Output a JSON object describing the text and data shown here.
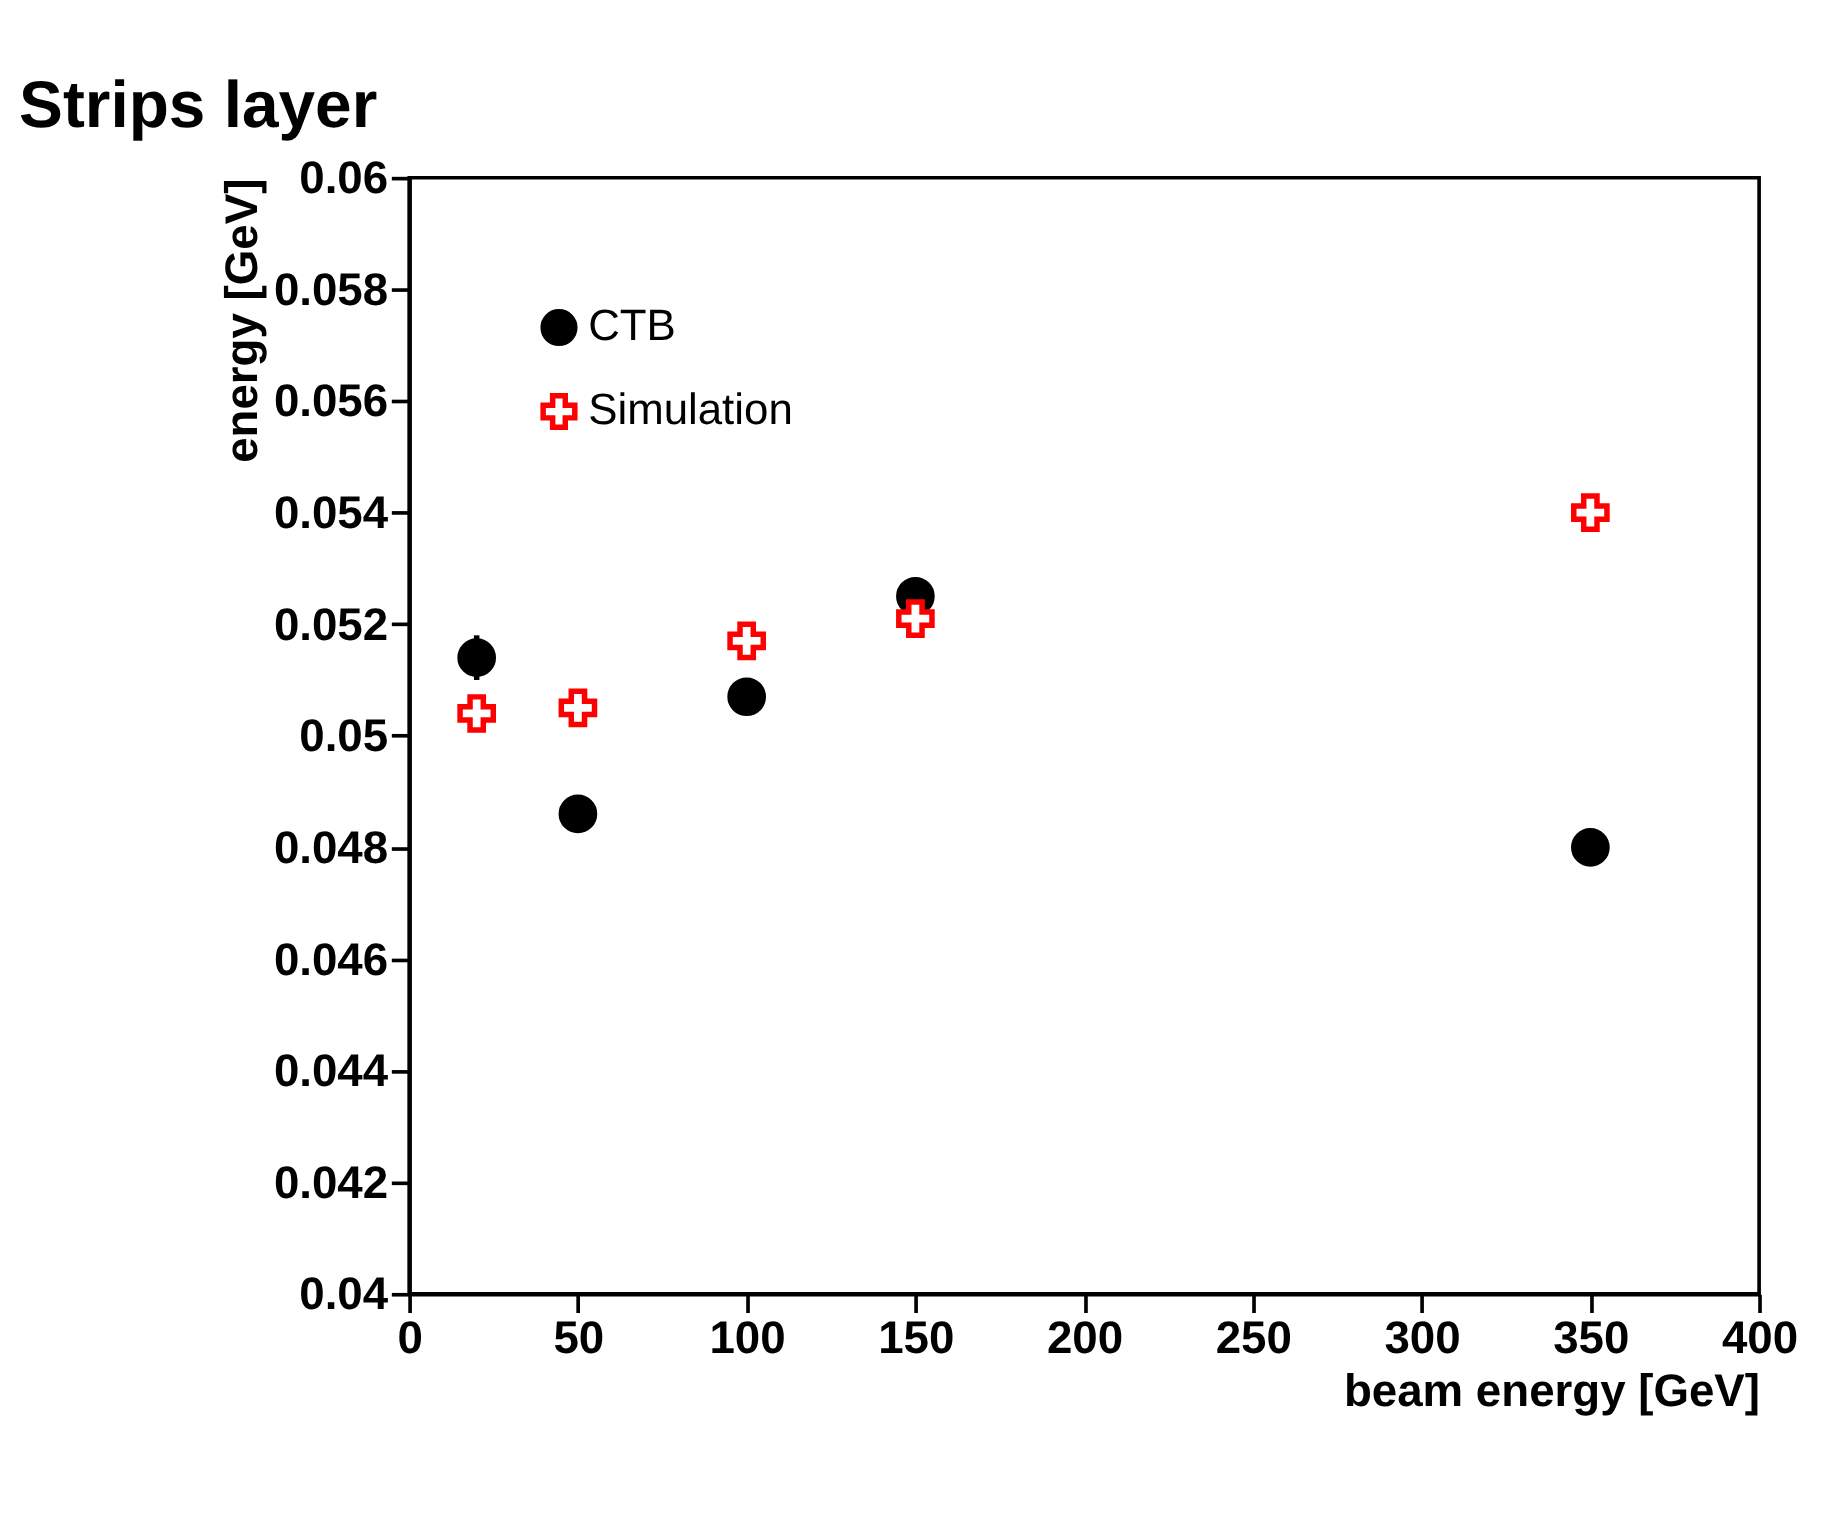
{
  "chart_data": {
    "type": "scatter",
    "title": "Strips layer",
    "xlabel": "beam energy [GeV]",
    "ylabel": "energy [GeV]",
    "x": [
      20,
      50,
      100,
      150,
      350
    ],
    "series": [
      {
        "name": "CTB",
        "color": "#000000",
        "marker": "circle",
        "values": [
          0.0514,
          0.0486,
          0.0507,
          0.0525,
          0.048
        ],
        "errors": [
          0.0004,
          null,
          null,
          null,
          null
        ]
      },
      {
        "name": "Simulation",
        "color": "#ff0000",
        "marker": "cross",
        "values": [
          0.0504,
          0.0505,
          0.0517,
          0.0521,
          0.054
        ]
      }
    ],
    "xlim": [
      0,
      400
    ],
    "xticks": [
      0,
      50,
      100,
      150,
      200,
      250,
      300,
      350,
      400
    ],
    "ylim": [
      0.04,
      0.06
    ],
    "yticks": [
      0.04,
      0.042,
      0.044,
      0.046,
      0.048,
      0.05,
      0.052,
      0.054,
      0.056,
      0.058,
      0.06
    ],
    "legend": "top left",
    "grid": false
  }
}
